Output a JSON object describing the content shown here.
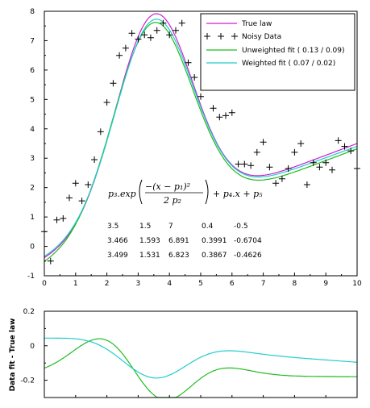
{
  "colors": {
    "true_law": "#cc22cc",
    "unweighted": "#22bb22",
    "weighted": "#22cccc",
    "data": "#000000",
    "axes": "#000000"
  },
  "chart_data": [
    {
      "type": "line",
      "xlim": [
        0,
        10
      ],
      "ylim": [
        -1,
        8
      ],
      "x_ticks": [
        "0",
        "1",
        "2",
        "3",
        "4",
        "5",
        "6",
        "7",
        "8",
        "9",
        "10"
      ],
      "y_ticks": [
        "-1",
        "0",
        "1",
        "2",
        "3",
        "4",
        "5",
        "6",
        "7",
        "8"
      ],
      "grid": false,
      "legend_position": "top-right",
      "legend": [
        "True law",
        "Noisy Data",
        "Unweighted fit ( 0.13 / 0.09)",
        "Weighted fit ( 0.07 / 0.02)"
      ],
      "series": [
        {
          "name": "True law",
          "style": "line",
          "color_key": "true_law",
          "params": [
            3.5,
            1.5,
            7,
            0.4,
            -0.5
          ]
        },
        {
          "name": "Unweighted fit ( 0.13 / 0.09)",
          "style": "line",
          "color_key": "unweighted",
          "params": [
            3.466,
            1.593,
            6.891,
            0.3991,
            -0.6704
          ]
        },
        {
          "name": "Weighted fit ( 0.07 / 0.02)",
          "style": "line",
          "color_key": "weighted",
          "params": [
            3.499,
            1.531,
            6.823,
            0.3867,
            -0.4626
          ]
        },
        {
          "name": "Noisy Data",
          "style": "markers",
          "marker": "+",
          "x": [
            0.0,
            0.2,
            0.4,
            0.6,
            0.8,
            1.0,
            1.2,
            1.4,
            1.6,
            1.8,
            2.0,
            2.2,
            2.4,
            2.6,
            2.8,
            3.0,
            3.2,
            3.4,
            3.6,
            3.8,
            4.0,
            4.2,
            4.4,
            4.6,
            4.8,
            5.0,
            5.2,
            5.4,
            5.6,
            5.8,
            6.0,
            6.2,
            6.4,
            6.6,
            6.8,
            7.0,
            7.2,
            7.4,
            7.6,
            7.8,
            8.0,
            8.2,
            8.4,
            8.6,
            8.8,
            9.0,
            9.2,
            9.4,
            9.6,
            9.8,
            10.0
          ],
          "y": [
            0.5,
            -0.5,
            0.9,
            0.95,
            1.65,
            2.15,
            1.55,
            2.1,
            2.95,
            3.9,
            4.9,
            5.55,
            6.5,
            6.75,
            7.25,
            7.05,
            7.2,
            7.1,
            7.35,
            7.6,
            7.2,
            7.35,
            7.6,
            6.25,
            5.75,
            5.1,
            5.6,
            4.7,
            4.4,
            4.45,
            4.55,
            2.8,
            2.8,
            2.75,
            3.2,
            3.55,
            2.7,
            2.15,
            2.3,
            2.65,
            3.2,
            3.5,
            2.1,
            2.85,
            2.7,
            2.85,
            2.6,
            3.6,
            3.4,
            3.25,
            2.65
          ]
        }
      ],
      "annotations": {
        "formula": "p3.exp(-(x-p1)^2/(2 p2)) + p4.x + p5",
        "param_rows": [
          [
            "3.5",
            "1.5",
            "7",
            "0.4",
            "-0.5"
          ],
          [
            "3.466",
            "1.593",
            "6.891",
            "0.3991",
            "-0.6704"
          ],
          [
            "3.499",
            "1.531",
            "6.823",
            "0.3867",
            "-0.4626"
          ]
        ]
      }
    },
    {
      "type": "line",
      "xlim": [
        0,
        10
      ],
      "ylim": [
        -0.3,
        0.2
      ],
      "y_ticks": [
        "-0.2",
        "0",
        "0.2"
      ],
      "ylabel": "Data fit - True law",
      "grid": false,
      "series": [
        {
          "name": "Unweighted fit ( 0.13 / 0.09)",
          "color_key": "unweighted"
        },
        {
          "name": "Weighted fit ( 0.07 / 0.02)",
          "color_key": "weighted"
        }
      ]
    }
  ]
}
